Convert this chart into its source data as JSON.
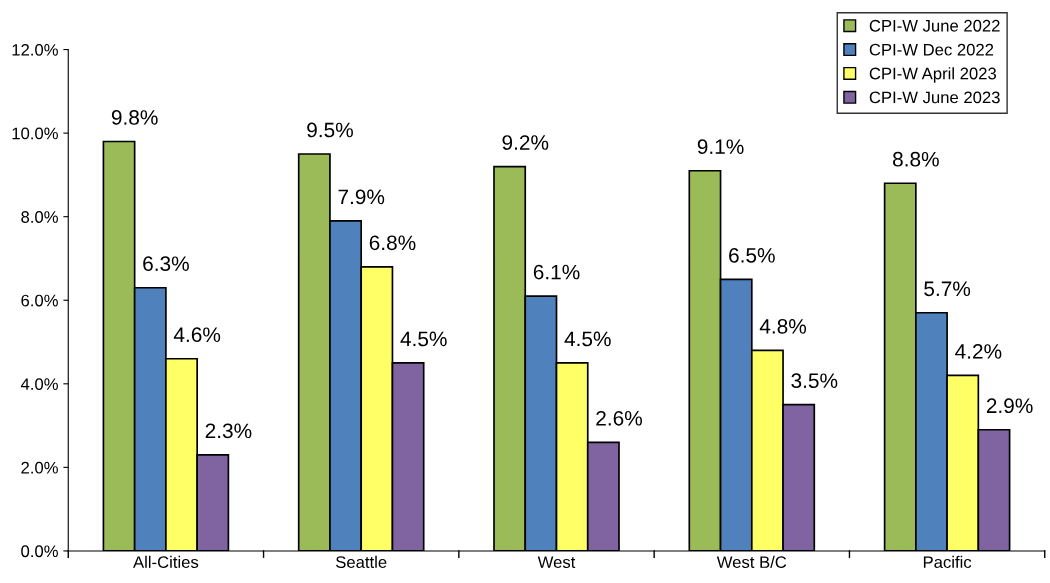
{
  "chart_data": {
    "type": "bar",
    "categories": [
      "All-Cities",
      "Seattle",
      "West",
      "West B/C",
      "Pacific"
    ],
    "series": [
      {
        "name": "CPI-W June 2022",
        "color": "#9bbb59",
        "values": [
          9.8,
          9.5,
          9.2,
          9.1,
          8.8
        ],
        "value_labels": [
          "9.8%",
          "9.5%",
          "9.2%",
          "9.1%",
          "8.8%"
        ]
      },
      {
        "name": "CPI-W Dec 2022",
        "color": "#4f81bd",
        "values": [
          6.3,
          7.9,
          6.1,
          6.5,
          5.7
        ],
        "value_labels": [
          "6.3%",
          "7.9%",
          "6.1%",
          "6.5%",
          "5.7%"
        ]
      },
      {
        "name": "CPI-W April 2023",
        "color": "#ffff66",
        "values": [
          4.6,
          6.8,
          4.5,
          4.8,
          4.2
        ],
        "value_labels": [
          "4.6%",
          "6.8%",
          "4.5%",
          "4.8%",
          "4.2%"
        ]
      },
      {
        "name": "CPI-W June 2023",
        "color": "#8064a2",
        "values": [
          2.3,
          4.5,
          2.6,
          3.5,
          2.9
        ],
        "value_labels": [
          "2.3%",
          "4.5%",
          "2.6%",
          "3.5%",
          "2.9%"
        ]
      }
    ],
    "ylim": [
      0,
      12
    ],
    "yticks": [
      {
        "value": 0,
        "label": "0.0%"
      },
      {
        "value": 2,
        "label": "2.0%"
      },
      {
        "value": 4,
        "label": "4.0%"
      },
      {
        "value": 6,
        "label": "6.0%"
      },
      {
        "value": 8,
        "label": "8.0%"
      },
      {
        "value": 10,
        "label": "10.0%"
      },
      {
        "value": 12,
        "label": "12.0%"
      }
    ],
    "grid": false,
    "legend": "top right"
  }
}
